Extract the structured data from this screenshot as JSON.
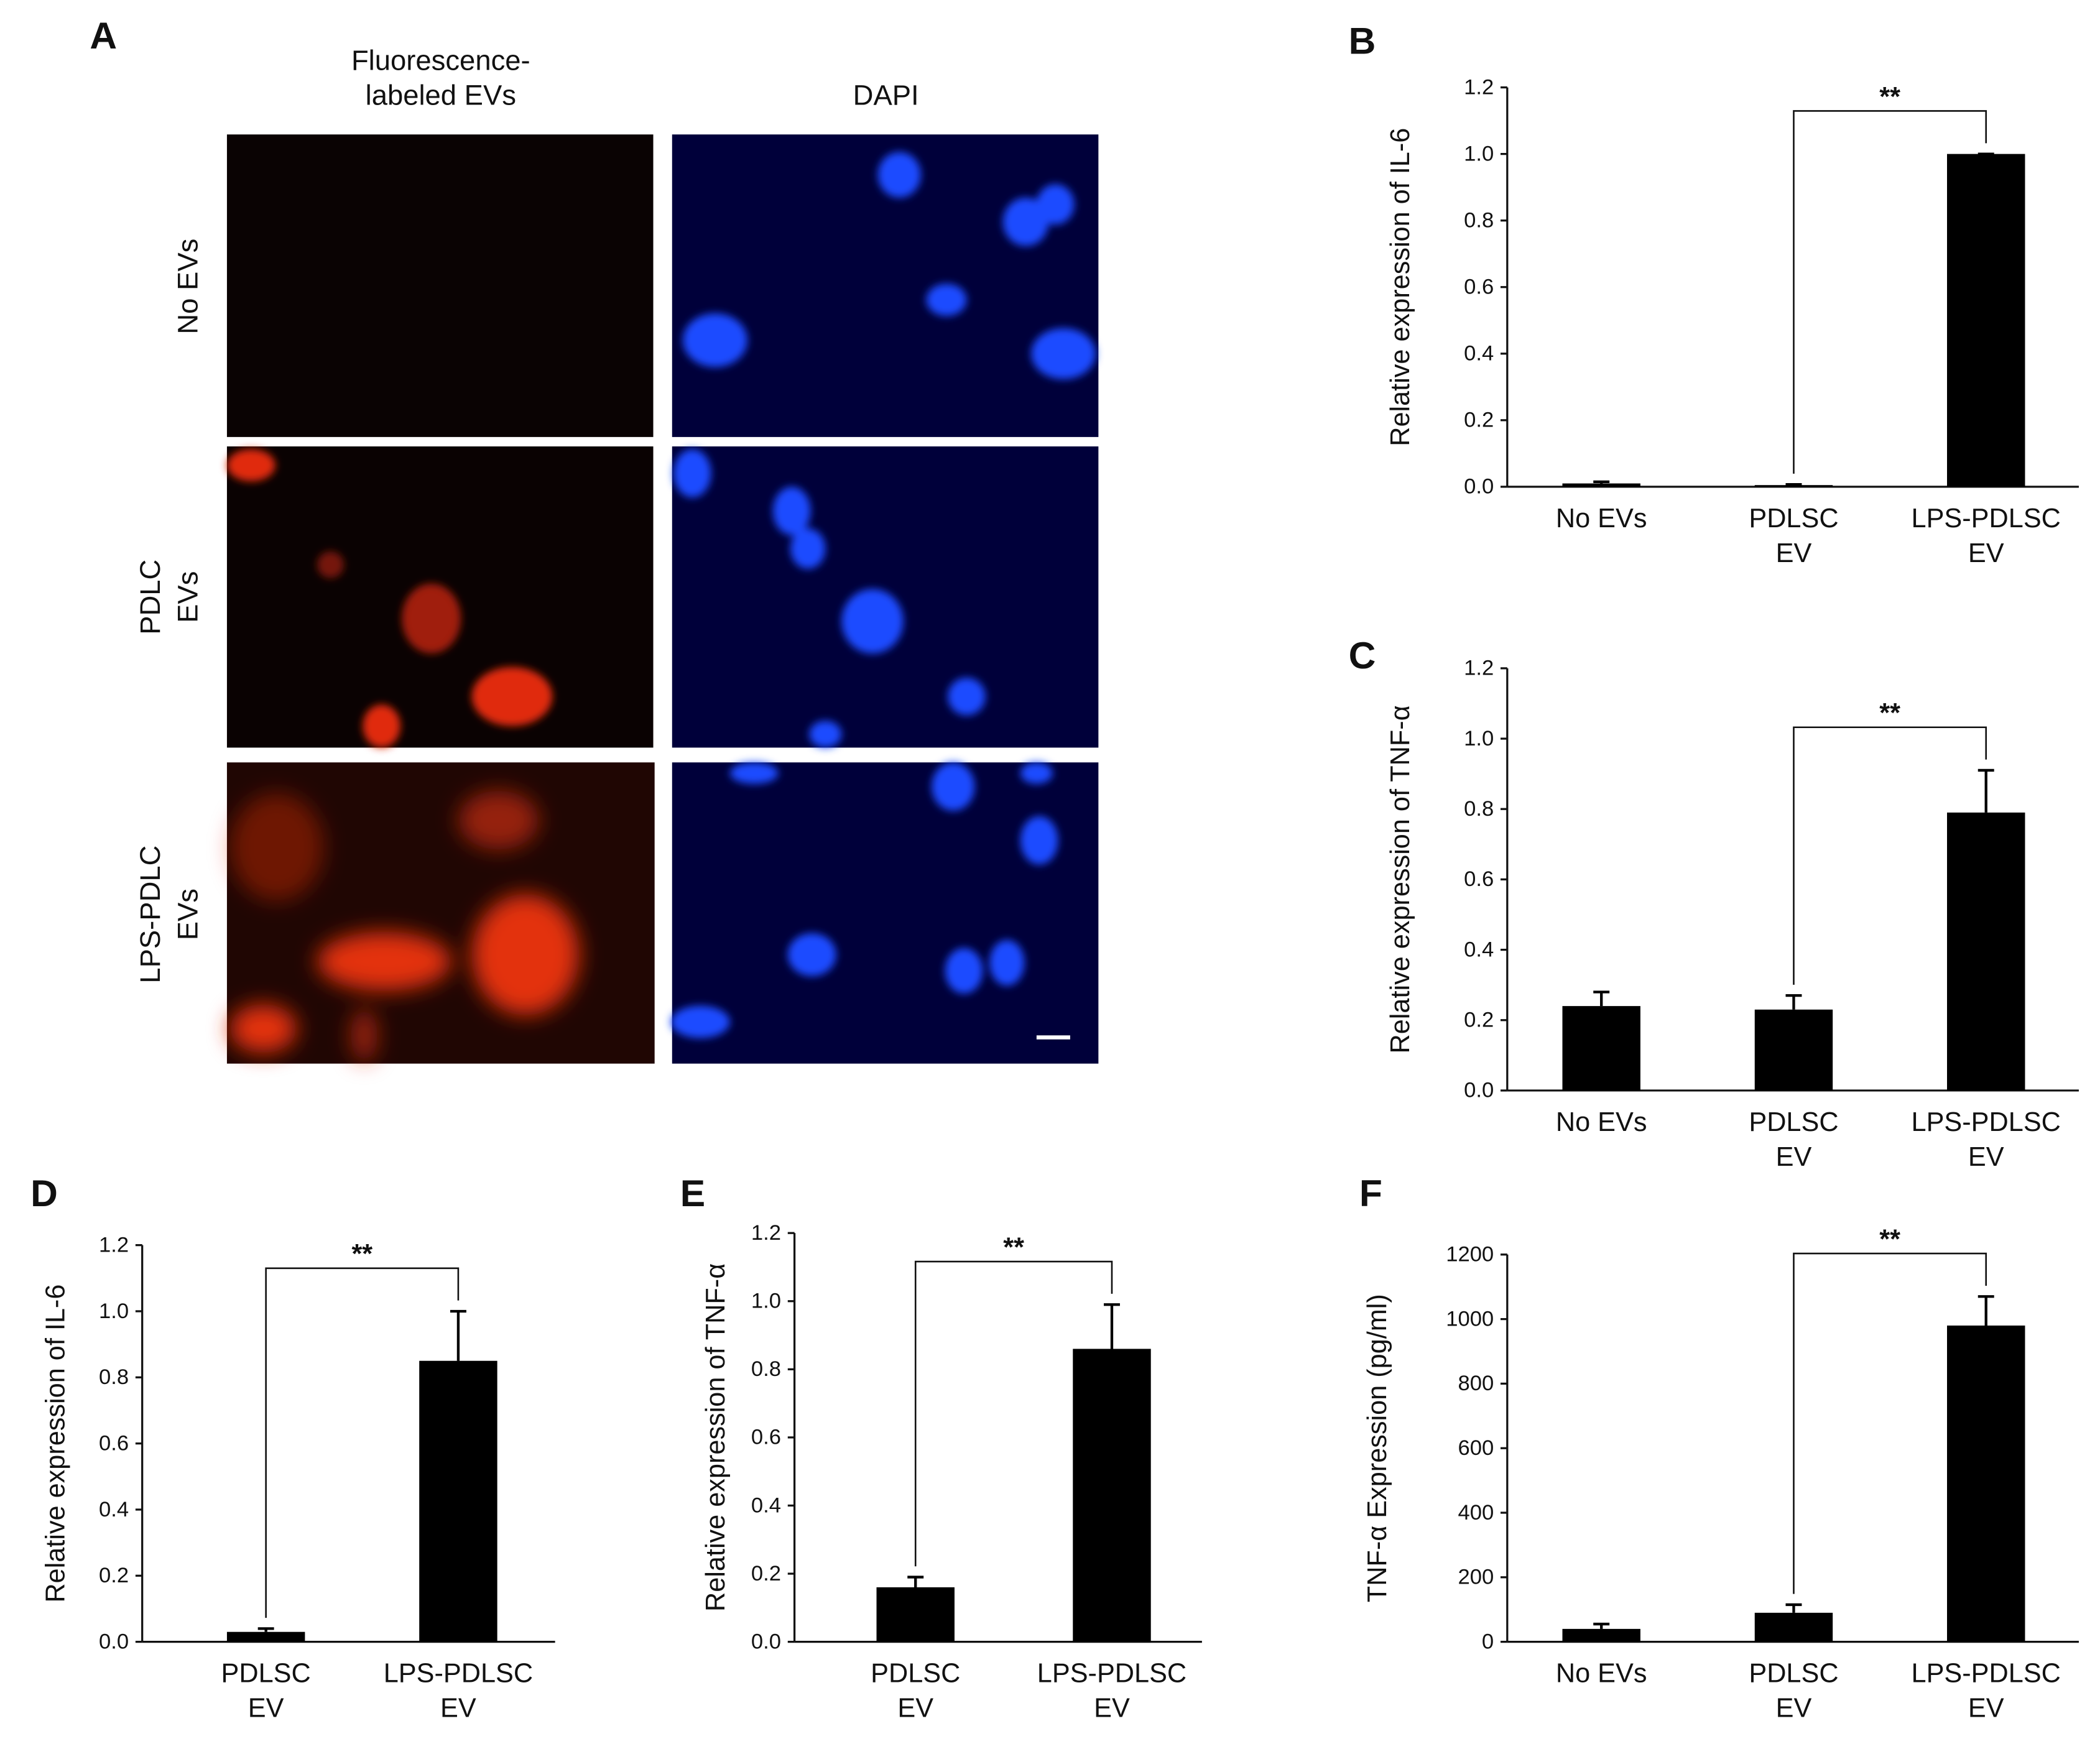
{
  "panel_a": {
    "letter": "A",
    "columns": [
      [
        "Fluorescence-",
        "labeled EVs"
      ],
      [
        "DAPI"
      ]
    ],
    "rows": [
      [
        "No EVs"
      ],
      [
        "PDLC",
        "EVs"
      ],
      [
        "LPS-PDLC",
        "EVs"
      ]
    ]
  },
  "chart_data": [
    {
      "type": "bar",
      "panel": "B",
      "y_label": "Relative expression of IL-6",
      "categories": [
        [
          "No EVs"
        ],
        [
          "PDLSC",
          "EV"
        ],
        [
          "LPS-PDLSC",
          "EV"
        ]
      ],
      "values": [
        0.01,
        0.005,
        1.0
      ],
      "errors": [
        0.005,
        0.002,
        0.0
      ],
      "color": "#000000",
      "ylim": [
        0,
        1.2
      ],
      "yticks": [
        {
          "value": 0,
          "label": "0.0"
        },
        0.2,
        0.4,
        0.6,
        0.8,
        {
          "value": 1,
          "label": "1.0"
        },
        1.2
      ],
      "annotation": "**"
    },
    {
      "type": "bar",
      "panel": "C",
      "y_label": "Relative expression of TNF-α",
      "categories": [
        [
          "No EVs"
        ],
        [
          "PDLSC",
          "EV"
        ],
        [
          "LPS-PDLSC",
          "EV"
        ]
      ],
      "values": [
        0.24,
        0.23,
        0.79
      ],
      "errors": [
        0.04,
        0.04,
        0.12
      ],
      "color": "#000000",
      "ylim": [
        0,
        1.2
      ],
      "yticks": [
        {
          "value": 0,
          "label": "0.0"
        },
        0.2,
        0.4,
        0.6,
        0.8,
        {
          "value": 1,
          "label": "1.0"
        },
        1.2
      ],
      "annotation": "**"
    },
    {
      "type": "bar",
      "panel": "D",
      "y_label": "Relative expression of IL-6",
      "categories": [
        [
          "PDLSC",
          "EV"
        ],
        [
          "LPS-PDLSC",
          "EV"
        ]
      ],
      "values": [
        0.03,
        0.85
      ],
      "errors": [
        0.01,
        0.15
      ],
      "color": "#000000",
      "ylim": [
        0,
        1.2
      ],
      "yticks": [
        {
          "value": 0,
          "label": "0.0"
        },
        0.2,
        0.4,
        0.6,
        0.8,
        {
          "value": 1,
          "label": "1.0"
        },
        1.2
      ],
      "annotation": "**"
    },
    {
      "type": "bar",
      "panel": "E",
      "y_label": "Relative expression of TNF-α",
      "categories": [
        [
          "PDLSC",
          "EV"
        ],
        [
          "LPS-PDLSC",
          "EV"
        ]
      ],
      "values": [
        0.16,
        0.86
      ],
      "errors": [
        0.03,
        0.13
      ],
      "color": "#000000",
      "ylim": [
        0,
        1.2
      ],
      "yticks": [
        {
          "value": 0,
          "label": "0.0"
        },
        0.2,
        0.4,
        0.6,
        0.8,
        {
          "value": 1,
          "label": "1.0"
        },
        1.2
      ],
      "annotation": "**"
    },
    {
      "type": "bar",
      "panel": "F",
      "y_label": "TNF-α Expression (pg/ml)",
      "categories": [
        [
          "No EVs"
        ],
        [
          "PDLSC",
          "EV"
        ],
        [
          "LPS-PDLSC",
          "EV"
        ]
      ],
      "values": [
        40,
        90,
        980
      ],
      "errors": [
        15,
        25,
        90
      ],
      "color": "#000000",
      "ylim": [
        0,
        1200
      ],
      "yticks": [
        0,
        200,
        400,
        600,
        800,
        1000,
        1200
      ],
      "annotation": "**"
    }
  ]
}
